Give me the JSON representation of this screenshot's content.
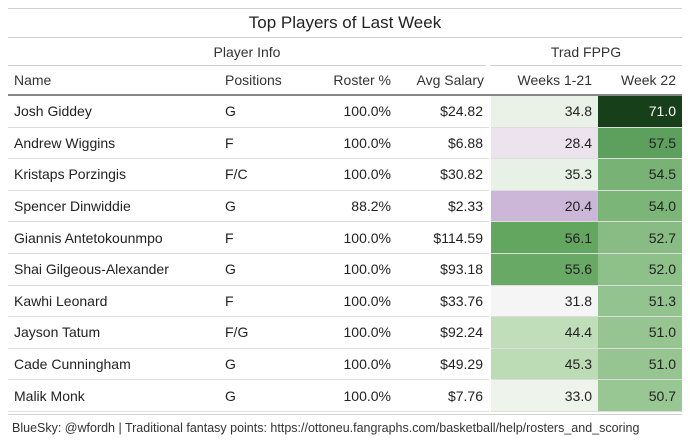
{
  "title": "Top Players of Last Week",
  "spanners": {
    "player_info": "Player Info",
    "trad_fppg": "Trad FPPG"
  },
  "columns": [
    "Name",
    "Positions",
    "Roster %",
    "Avg Salary",
    "Weeks 1-21",
    "Week 22"
  ],
  "rows": [
    {
      "name": "Josh Giddey",
      "pos": "G",
      "roster": "100.0%",
      "salary": "$24.82",
      "w121": "34.8",
      "w22": "71.0",
      "c1": "#eaf2e7",
      "c2": "#17401a",
      "t2": "#ffffff"
    },
    {
      "name": "Andrew Wiggins",
      "pos": "F",
      "roster": "100.0%",
      "salary": "$6.88",
      "w121": "28.4",
      "w22": "57.5",
      "c1": "#ede3ee",
      "c2": "#5d9f5c",
      "t2": "#222222"
    },
    {
      "name": "Kristaps Porzingis",
      "pos": "F/C",
      "roster": "100.0%",
      "salary": "$30.82",
      "w121": "35.3",
      "w22": "54.5",
      "c1": "#e8f1e5",
      "c2": "#78b274",
      "t2": "#222222"
    },
    {
      "name": "Spencer Dinwiddie",
      "pos": "G",
      "roster": "88.2%",
      "salary": "$2.33",
      "w121": "20.4",
      "w22": "54.0",
      "c1": "#cdb7d9",
      "c2": "#7cb578",
      "t2": "#222222"
    },
    {
      "name": "Giannis Antetokounmpo",
      "pos": "F",
      "roster": "100.0%",
      "salary": "$114.59",
      "w121": "56.1",
      "w22": "52.7",
      "c1": "#62a660",
      "c2": "#88bc84",
      "t2": "#222222"
    },
    {
      "name": "Shai Gilgeous-Alexander",
      "pos": "G",
      "roster": "100.0%",
      "salary": "$93.18",
      "w121": "55.6",
      "w22": "52.0",
      "c1": "#68a965",
      "c2": "#8ec089",
      "t2": "#222222"
    },
    {
      "name": "Kawhi Leonard",
      "pos": "F",
      "roster": "100.0%",
      "salary": "$33.76",
      "w121": "31.8",
      "w22": "51.3",
      "c1": "#f5f5f5",
      "c2": "#93c38e",
      "t2": "#222222"
    },
    {
      "name": "Jayson Tatum",
      "pos": "F/G",
      "roster": "100.0%",
      "salary": "$92.24",
      "w121": "44.4",
      "w22": "51.0",
      "c1": "#bfdeb9",
      "c2": "#96c591",
      "t2": "#222222"
    },
    {
      "name": "Cade Cunningham",
      "pos": "G",
      "roster": "100.0%",
      "salary": "$49.29",
      "w121": "45.3",
      "w22": "51.0",
      "c1": "#bcdcb6",
      "c2": "#96c591",
      "t2": "#222222"
    },
    {
      "name": "Malik Monk",
      "pos": "G",
      "roster": "100.0%",
      "salary": "$7.76",
      "w121": "33.0",
      "w22": "50.7",
      "c1": "#eef4ec",
      "c2": "#99c794",
      "t2": "#222222"
    }
  ],
  "footer": "BlueSky: @wfordh | Traditional fantasy points: https://ottoneu.fangraphs.com/basketball/help/rosters_and_scoring"
}
